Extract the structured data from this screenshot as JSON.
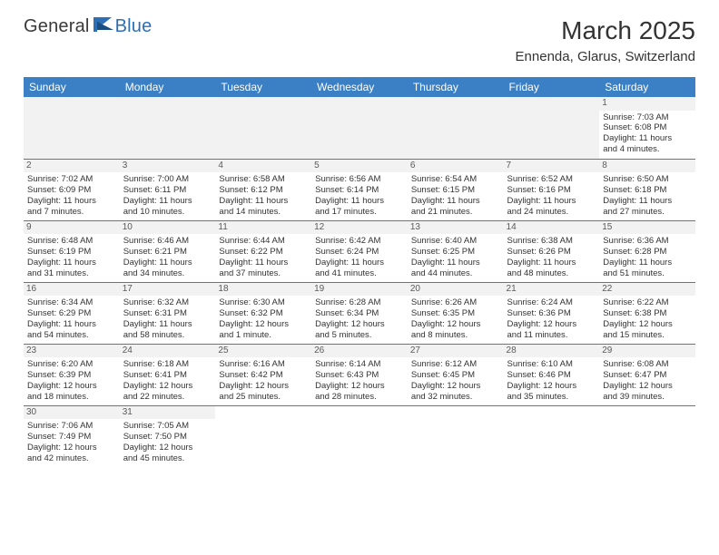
{
  "logo": {
    "part1": "General",
    "part2": "Blue"
  },
  "title": "March 2025",
  "location": "Ennenda, Glarus, Switzerland",
  "colors": {
    "header_bg": "#3b7fc4",
    "header_text": "#ffffff",
    "daynum_bg": "#f2f2f2",
    "border": "#3b7fc4",
    "logo_accent": "#2d6fb7"
  },
  "weekdays": [
    "Sunday",
    "Monday",
    "Tuesday",
    "Wednesday",
    "Thursday",
    "Friday",
    "Saturday"
  ],
  "weeks": [
    [
      null,
      null,
      null,
      null,
      null,
      null,
      {
        "n": "1",
        "sr": "Sunrise: 7:03 AM",
        "ss": "Sunset: 6:08 PM",
        "d1": "Daylight: 11 hours",
        "d2": "and 4 minutes."
      }
    ],
    [
      {
        "n": "2",
        "sr": "Sunrise: 7:02 AM",
        "ss": "Sunset: 6:09 PM",
        "d1": "Daylight: 11 hours",
        "d2": "and 7 minutes."
      },
      {
        "n": "3",
        "sr": "Sunrise: 7:00 AM",
        "ss": "Sunset: 6:11 PM",
        "d1": "Daylight: 11 hours",
        "d2": "and 10 minutes."
      },
      {
        "n": "4",
        "sr": "Sunrise: 6:58 AM",
        "ss": "Sunset: 6:12 PM",
        "d1": "Daylight: 11 hours",
        "d2": "and 14 minutes."
      },
      {
        "n": "5",
        "sr": "Sunrise: 6:56 AM",
        "ss": "Sunset: 6:14 PM",
        "d1": "Daylight: 11 hours",
        "d2": "and 17 minutes."
      },
      {
        "n": "6",
        "sr": "Sunrise: 6:54 AM",
        "ss": "Sunset: 6:15 PM",
        "d1": "Daylight: 11 hours",
        "d2": "and 21 minutes."
      },
      {
        "n": "7",
        "sr": "Sunrise: 6:52 AM",
        "ss": "Sunset: 6:16 PM",
        "d1": "Daylight: 11 hours",
        "d2": "and 24 minutes."
      },
      {
        "n": "8",
        "sr": "Sunrise: 6:50 AM",
        "ss": "Sunset: 6:18 PM",
        "d1": "Daylight: 11 hours",
        "d2": "and 27 minutes."
      }
    ],
    [
      {
        "n": "9",
        "sr": "Sunrise: 6:48 AM",
        "ss": "Sunset: 6:19 PM",
        "d1": "Daylight: 11 hours",
        "d2": "and 31 minutes."
      },
      {
        "n": "10",
        "sr": "Sunrise: 6:46 AM",
        "ss": "Sunset: 6:21 PM",
        "d1": "Daylight: 11 hours",
        "d2": "and 34 minutes."
      },
      {
        "n": "11",
        "sr": "Sunrise: 6:44 AM",
        "ss": "Sunset: 6:22 PM",
        "d1": "Daylight: 11 hours",
        "d2": "and 37 minutes."
      },
      {
        "n": "12",
        "sr": "Sunrise: 6:42 AM",
        "ss": "Sunset: 6:24 PM",
        "d1": "Daylight: 11 hours",
        "d2": "and 41 minutes."
      },
      {
        "n": "13",
        "sr": "Sunrise: 6:40 AM",
        "ss": "Sunset: 6:25 PM",
        "d1": "Daylight: 11 hours",
        "d2": "and 44 minutes."
      },
      {
        "n": "14",
        "sr": "Sunrise: 6:38 AM",
        "ss": "Sunset: 6:26 PM",
        "d1": "Daylight: 11 hours",
        "d2": "and 48 minutes."
      },
      {
        "n": "15",
        "sr": "Sunrise: 6:36 AM",
        "ss": "Sunset: 6:28 PM",
        "d1": "Daylight: 11 hours",
        "d2": "and 51 minutes."
      }
    ],
    [
      {
        "n": "16",
        "sr": "Sunrise: 6:34 AM",
        "ss": "Sunset: 6:29 PM",
        "d1": "Daylight: 11 hours",
        "d2": "and 54 minutes."
      },
      {
        "n": "17",
        "sr": "Sunrise: 6:32 AM",
        "ss": "Sunset: 6:31 PM",
        "d1": "Daylight: 11 hours",
        "d2": "and 58 minutes."
      },
      {
        "n": "18",
        "sr": "Sunrise: 6:30 AM",
        "ss": "Sunset: 6:32 PM",
        "d1": "Daylight: 12 hours",
        "d2": "and 1 minute."
      },
      {
        "n": "19",
        "sr": "Sunrise: 6:28 AM",
        "ss": "Sunset: 6:34 PM",
        "d1": "Daylight: 12 hours",
        "d2": "and 5 minutes."
      },
      {
        "n": "20",
        "sr": "Sunrise: 6:26 AM",
        "ss": "Sunset: 6:35 PM",
        "d1": "Daylight: 12 hours",
        "d2": "and 8 minutes."
      },
      {
        "n": "21",
        "sr": "Sunrise: 6:24 AM",
        "ss": "Sunset: 6:36 PM",
        "d1": "Daylight: 12 hours",
        "d2": "and 11 minutes."
      },
      {
        "n": "22",
        "sr": "Sunrise: 6:22 AM",
        "ss": "Sunset: 6:38 PM",
        "d1": "Daylight: 12 hours",
        "d2": "and 15 minutes."
      }
    ],
    [
      {
        "n": "23",
        "sr": "Sunrise: 6:20 AM",
        "ss": "Sunset: 6:39 PM",
        "d1": "Daylight: 12 hours",
        "d2": "and 18 minutes."
      },
      {
        "n": "24",
        "sr": "Sunrise: 6:18 AM",
        "ss": "Sunset: 6:41 PM",
        "d1": "Daylight: 12 hours",
        "d2": "and 22 minutes."
      },
      {
        "n": "25",
        "sr": "Sunrise: 6:16 AM",
        "ss": "Sunset: 6:42 PM",
        "d1": "Daylight: 12 hours",
        "d2": "and 25 minutes."
      },
      {
        "n": "26",
        "sr": "Sunrise: 6:14 AM",
        "ss": "Sunset: 6:43 PM",
        "d1": "Daylight: 12 hours",
        "d2": "and 28 minutes."
      },
      {
        "n": "27",
        "sr": "Sunrise: 6:12 AM",
        "ss": "Sunset: 6:45 PM",
        "d1": "Daylight: 12 hours",
        "d2": "and 32 minutes."
      },
      {
        "n": "28",
        "sr": "Sunrise: 6:10 AM",
        "ss": "Sunset: 6:46 PM",
        "d1": "Daylight: 12 hours",
        "d2": "and 35 minutes."
      },
      {
        "n": "29",
        "sr": "Sunrise: 6:08 AM",
        "ss": "Sunset: 6:47 PM",
        "d1": "Daylight: 12 hours",
        "d2": "and 39 minutes."
      }
    ],
    [
      {
        "n": "30",
        "sr": "Sunrise: 7:06 AM",
        "ss": "Sunset: 7:49 PM",
        "d1": "Daylight: 12 hours",
        "d2": "and 42 minutes."
      },
      {
        "n": "31",
        "sr": "Sunrise: 7:05 AM",
        "ss": "Sunset: 7:50 PM",
        "d1": "Daylight: 12 hours",
        "d2": "and 45 minutes."
      },
      null,
      null,
      null,
      null,
      null
    ]
  ]
}
